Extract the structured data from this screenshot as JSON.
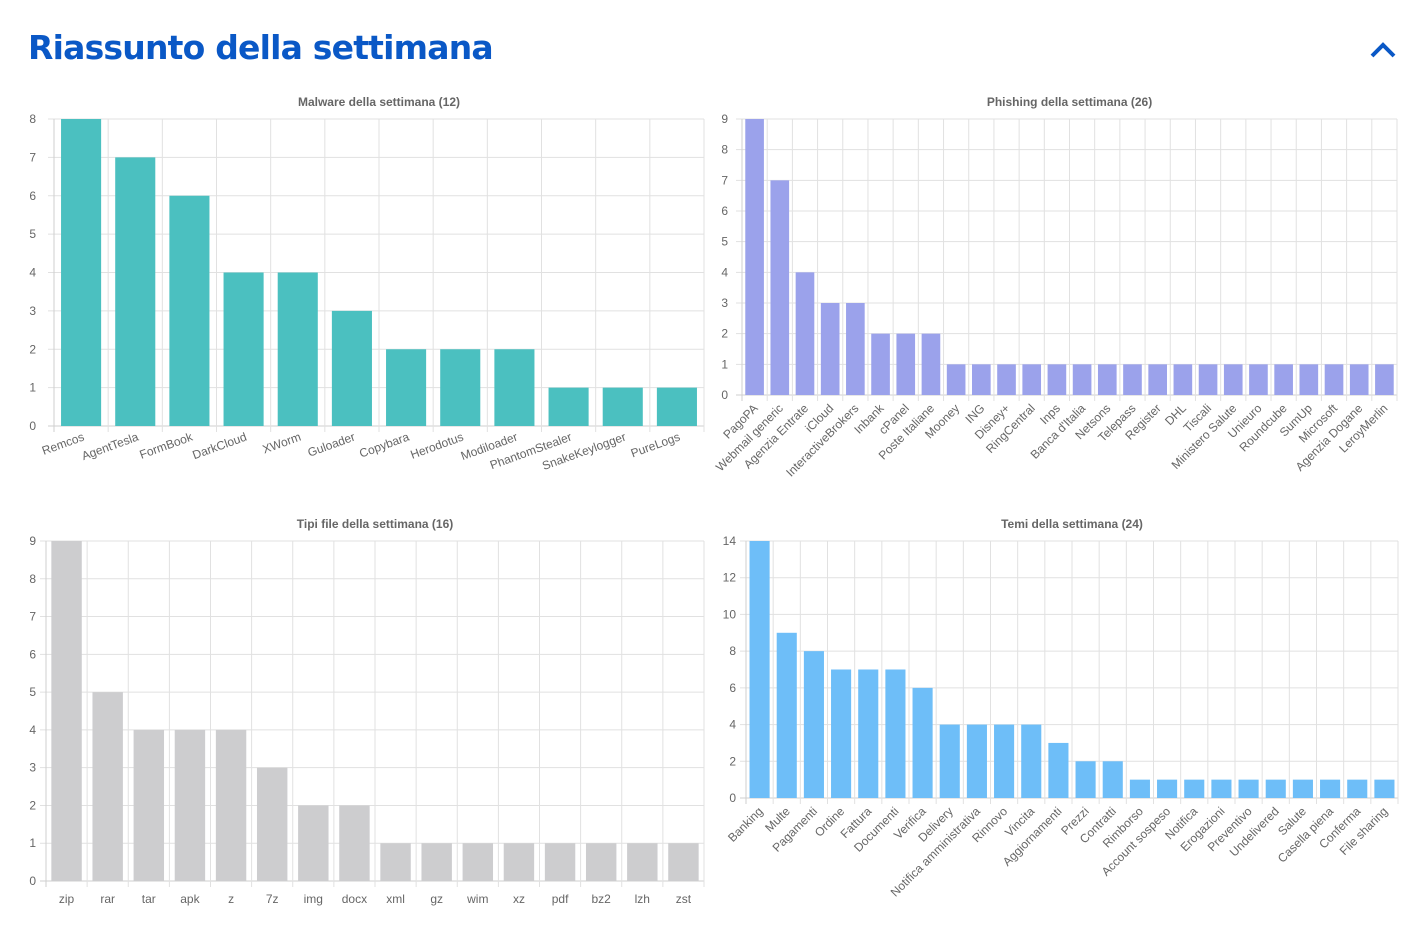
{
  "header": {
    "title": "Riassunto della settimana",
    "collapse_icon": "chevron-up-icon",
    "accent_color": "#0a58c6"
  },
  "chart_data": [
    {
      "id": "malware",
      "type": "bar",
      "title": "Malware della settimana (12)",
      "xlabel": "",
      "ylabel": "",
      "ylim": [
        0,
        8
      ],
      "y_step": 1,
      "grid": true,
      "legend": "none",
      "label_rotation": -20,
      "color": "#4bc0c0",
      "categories": [
        "Remcos",
        "AgentTesla",
        "FormBook",
        "DarkCloud",
        "XWorm",
        "Guloader",
        "Copybara",
        "Herodotus",
        "Modiloader",
        "PhantomStealer",
        "SnakeKeylogger",
        "PureLogs"
      ],
      "values": [
        8,
        7,
        6,
        4,
        4,
        3,
        2,
        2,
        2,
        1,
        1,
        1
      ]
    },
    {
      "id": "phishing",
      "type": "bar",
      "title": "Phishing della settimana (26)",
      "xlabel": "",
      "ylabel": "",
      "ylim": [
        0,
        9
      ],
      "y_step": 1,
      "grid": true,
      "legend": "none",
      "label_rotation": -45,
      "color": "#9ba2eb",
      "categories": [
        "PagoPA",
        "Webmail generic",
        "Agenzia Entrate",
        "iCloud",
        "InteractiveBrokers",
        "Inbank",
        "cPanel",
        "Poste Italiane",
        "Mooney",
        "ING",
        "Disney+",
        "RingCentral",
        "Inps",
        "Banca d'Italia",
        "Netsons",
        "Telepass",
        "Register",
        "DHL",
        "Tiscali",
        "Ministero Salute",
        "Unieuro",
        "Roundcube",
        "SumUp",
        "Microsoft",
        "Agenzia Dogane",
        "LeroyMerlin"
      ],
      "values": [
        9,
        7,
        4,
        3,
        3,
        2,
        2,
        2,
        1,
        1,
        1,
        1,
        1,
        1,
        1,
        1,
        1,
        1,
        1,
        1,
        1,
        1,
        1,
        1,
        1,
        1
      ]
    },
    {
      "id": "filetypes",
      "type": "bar",
      "title": "Tipi file della settimana (16)",
      "xlabel": "",
      "ylabel": "",
      "ylim": [
        0,
        9
      ],
      "y_step": 1,
      "grid": true,
      "legend": "none",
      "label_rotation": 0,
      "color": "#cdcdcf",
      "categories": [
        "zip",
        "rar",
        "tar",
        "apk",
        "z",
        "7z",
        "img",
        "docx",
        "xml",
        "gz",
        "wim",
        "xz",
        "pdf",
        "bz2",
        "lzh",
        "zst"
      ],
      "values": [
        9,
        5,
        4,
        4,
        4,
        3,
        2,
        2,
        1,
        1,
        1,
        1,
        1,
        1,
        1,
        1
      ]
    },
    {
      "id": "themes",
      "type": "bar",
      "title": "Temi della settimana (24)",
      "xlabel": "",
      "ylabel": "",
      "ylim": [
        0,
        14
      ],
      "y_step": 2,
      "grid": true,
      "legend": "none",
      "label_rotation": -45,
      "color": "#6ebef8",
      "categories": [
        "Banking",
        "Multe",
        "Pagamenti",
        "Ordine",
        "Fattura",
        "Documenti",
        "Verifica",
        "Delivery",
        "Notifica amministrativa",
        "Rinnovo",
        "Vincita",
        "Aggiornamenti",
        "Prezzi",
        "Contratti",
        "Rimborso",
        "Account sospeso",
        "Notifica",
        "Erogazioni",
        "Preventivo",
        "Undelivered",
        "Salute",
        "Casella piena",
        "Conferma",
        "File sharing"
      ],
      "values": [
        14,
        9,
        8,
        7,
        7,
        7,
        6,
        4,
        4,
        4,
        4,
        3,
        2,
        2,
        1,
        1,
        1,
        1,
        1,
        1,
        1,
        1,
        1,
        1
      ]
    }
  ]
}
